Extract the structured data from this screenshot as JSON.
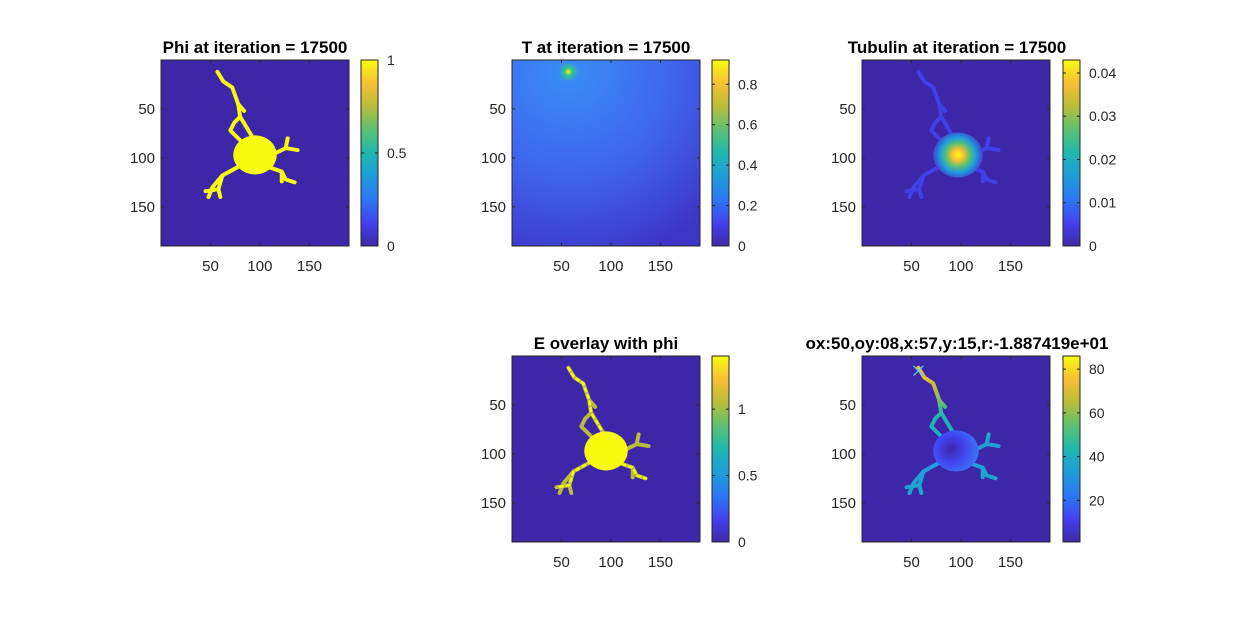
{
  "window": {
    "background": "#ffffff"
  },
  "colors": {
    "low": "#3e26a8",
    "mid": "#1fb7b0",
    "high": "#f9fb0e"
  },
  "chart_data": [
    {
      "id": "phi",
      "type": "heatmap",
      "title": "Phi at iteration = 17500",
      "xticks": [
        "50",
        "100",
        "150"
      ],
      "yticks": [
        "50",
        "100",
        "150"
      ],
      "xlim": [
        0,
        190
      ],
      "ylim": [
        0,
        190
      ],
      "colorbar": {
        "ticks": [
          "0",
          "0.5",
          "1"
        ],
        "min": 0,
        "max": 1
      },
      "content": "binary cell mask: round body near (95,95) with branching neurites"
    },
    {
      "id": "t",
      "type": "heatmap",
      "title": "T at iteration = 17500",
      "xticks": [
        "50",
        "100",
        "150"
      ],
      "yticks": [
        "50",
        "100",
        "150"
      ],
      "xlim": [
        0,
        190
      ],
      "ylim": [
        0,
        190
      ],
      "colorbar": {
        "ticks": [
          "0",
          "0.2",
          "0.4",
          "0.6",
          "0.8"
        ],
        "min": 0,
        "max": 0.92
      },
      "peak": {
        "x": 57,
        "y": 12,
        "value": 0.92
      }
    },
    {
      "id": "tubulin",
      "type": "heatmap",
      "title": "Tubulin at iteration = 17500",
      "xticks": [
        "50",
        "100",
        "150"
      ],
      "yticks": [
        "50",
        "100",
        "150"
      ],
      "xlim": [
        0,
        190
      ],
      "ylim": [
        0,
        190
      ],
      "colorbar": {
        "ticks": [
          "0",
          "0.01",
          "0.02",
          "0.03",
          "0.04"
        ],
        "min": 0,
        "max": 0.043
      },
      "peak": {
        "x": 97,
        "y": 97,
        "value": 0.043
      }
    },
    {
      "id": "e",
      "type": "heatmap",
      "title": "E overlay with phi",
      "xticks": [
        "50",
        "100",
        "150"
      ],
      "yticks": [
        "50",
        "100",
        "150"
      ],
      "xlim": [
        0,
        190
      ],
      "ylim": [
        0,
        190
      ],
      "colorbar": {
        "ticks": [
          "0",
          "0.5",
          "1"
        ],
        "min": 0,
        "max": 1.4
      }
    },
    {
      "id": "r",
      "type": "heatmap",
      "title": "ox:50,oy:08,x:57,y:15,r:-1.887419e+01",
      "xticks": [
        "50",
        "100",
        "150"
      ],
      "yticks": [
        "50",
        "100",
        "150"
      ],
      "xlim": [
        0,
        190
      ],
      "ylim": [
        0,
        190
      ],
      "colorbar": {
        "ticks": [
          "20",
          "40",
          "60",
          "80"
        ],
        "min": 1,
        "max": 86
      },
      "marker": {
        "x": 57,
        "y": 15
      }
    }
  ]
}
